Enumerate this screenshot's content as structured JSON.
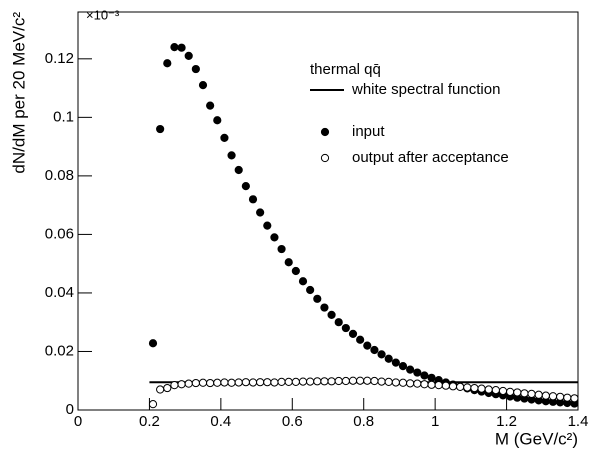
{
  "chart_data": {
    "type": "scatter",
    "multiplier": "×10⁻³",
    "xlabel": "M (GeV/c²)",
    "ylabel": "dN/dM per 20 MeV/c²",
    "legend_title": "thermal qq̄",
    "xlim": [
      0,
      1.4
    ],
    "ylim": [
      0,
      0.136
    ],
    "xticks": [
      0,
      0.2,
      0.4,
      0.6,
      0.8,
      1,
      1.2,
      1.4
    ],
    "yticks": [
      0,
      0.02,
      0.04,
      0.06,
      0.08,
      0.1,
      0.12
    ],
    "series": [
      {
        "name": "white spectral function",
        "color": "#000000",
        "marker": "line",
        "x": [
          0.2,
          1.4
        ],
        "values": [
          0.0095,
          0.0095
        ]
      },
      {
        "name": "input",
        "color": "#000000",
        "marker": "filled",
        "x": [
          0.21,
          0.23,
          0.25,
          0.27,
          0.29,
          0.31,
          0.33,
          0.35,
          0.37,
          0.39,
          0.41,
          0.43,
          0.45,
          0.47,
          0.49,
          0.51,
          0.53,
          0.55,
          0.57,
          0.59,
          0.61,
          0.63,
          0.65,
          0.67,
          0.69,
          0.71,
          0.73,
          0.75,
          0.77,
          0.79,
          0.81,
          0.83,
          0.85,
          0.87,
          0.89,
          0.91,
          0.93,
          0.95,
          0.97,
          0.99,
          1.01,
          1.03,
          1.05,
          1.07,
          1.09,
          1.11,
          1.13,
          1.15,
          1.17,
          1.19,
          1.21,
          1.23,
          1.25,
          1.27,
          1.29,
          1.31,
          1.33,
          1.35,
          1.37,
          1.39
        ],
        "values": [
          0.0228,
          0.096,
          0.1185,
          0.124,
          0.1238,
          0.121,
          0.1165,
          0.111,
          0.104,
          0.099,
          0.093,
          0.087,
          0.082,
          0.0765,
          0.072,
          0.0675,
          0.063,
          0.059,
          0.055,
          0.0505,
          0.0475,
          0.044,
          0.041,
          0.038,
          0.035,
          0.0325,
          0.03,
          0.028,
          0.026,
          0.024,
          0.022,
          0.0205,
          0.019,
          0.0175,
          0.0162,
          0.015,
          0.0138,
          0.0128,
          0.0118,
          0.011,
          0.0102,
          0.0094,
          0.0087,
          0.008,
          0.0074,
          0.0068,
          0.0063,
          0.0058,
          0.0054,
          0.005,
          0.0046,
          0.0042,
          0.0039,
          0.0036,
          0.0033,
          0.003,
          0.0028,
          0.0026,
          0.0024,
          0.0022
        ]
      },
      {
        "name": "output after acceptance",
        "color": "#000000",
        "marker": "open",
        "x": [
          0.21,
          0.23,
          0.25,
          0.27,
          0.29,
          0.31,
          0.33,
          0.35,
          0.37,
          0.39,
          0.41,
          0.43,
          0.45,
          0.47,
          0.49,
          0.51,
          0.53,
          0.55,
          0.57,
          0.59,
          0.61,
          0.63,
          0.65,
          0.67,
          0.69,
          0.71,
          0.73,
          0.75,
          0.77,
          0.79,
          0.81,
          0.83,
          0.85,
          0.87,
          0.89,
          0.91,
          0.93,
          0.95,
          0.97,
          0.99,
          1.01,
          1.03,
          1.05,
          1.07,
          1.09,
          1.11,
          1.13,
          1.15,
          1.17,
          1.19,
          1.21,
          1.23,
          1.25,
          1.27,
          1.29,
          1.31,
          1.33,
          1.35,
          1.37,
          1.39
        ],
        "values": [
          0.002,
          0.007,
          0.0075,
          0.0085,
          0.0088,
          0.009,
          0.0092,
          0.0093,
          0.0092,
          0.0093,
          0.0094,
          0.0093,
          0.0094,
          0.0095,
          0.0094,
          0.0095,
          0.0095,
          0.0094,
          0.0096,
          0.0096,
          0.0096,
          0.0097,
          0.0097,
          0.0098,
          0.0098,
          0.0098,
          0.0099,
          0.0099,
          0.01,
          0.01,
          0.01,
          0.0099,
          0.0097,
          0.0096,
          0.0094,
          0.0093,
          0.0091,
          0.009,
          0.0088,
          0.0086,
          0.0085,
          0.0083,
          0.0081,
          0.0079,
          0.0077,
          0.0075,
          0.0073,
          0.007,
          0.0068,
          0.0065,
          0.0062,
          0.006,
          0.0057,
          0.0055,
          0.0052,
          0.0049,
          0.0047,
          0.0045,
          0.0042,
          0.004
        ]
      }
    ]
  }
}
